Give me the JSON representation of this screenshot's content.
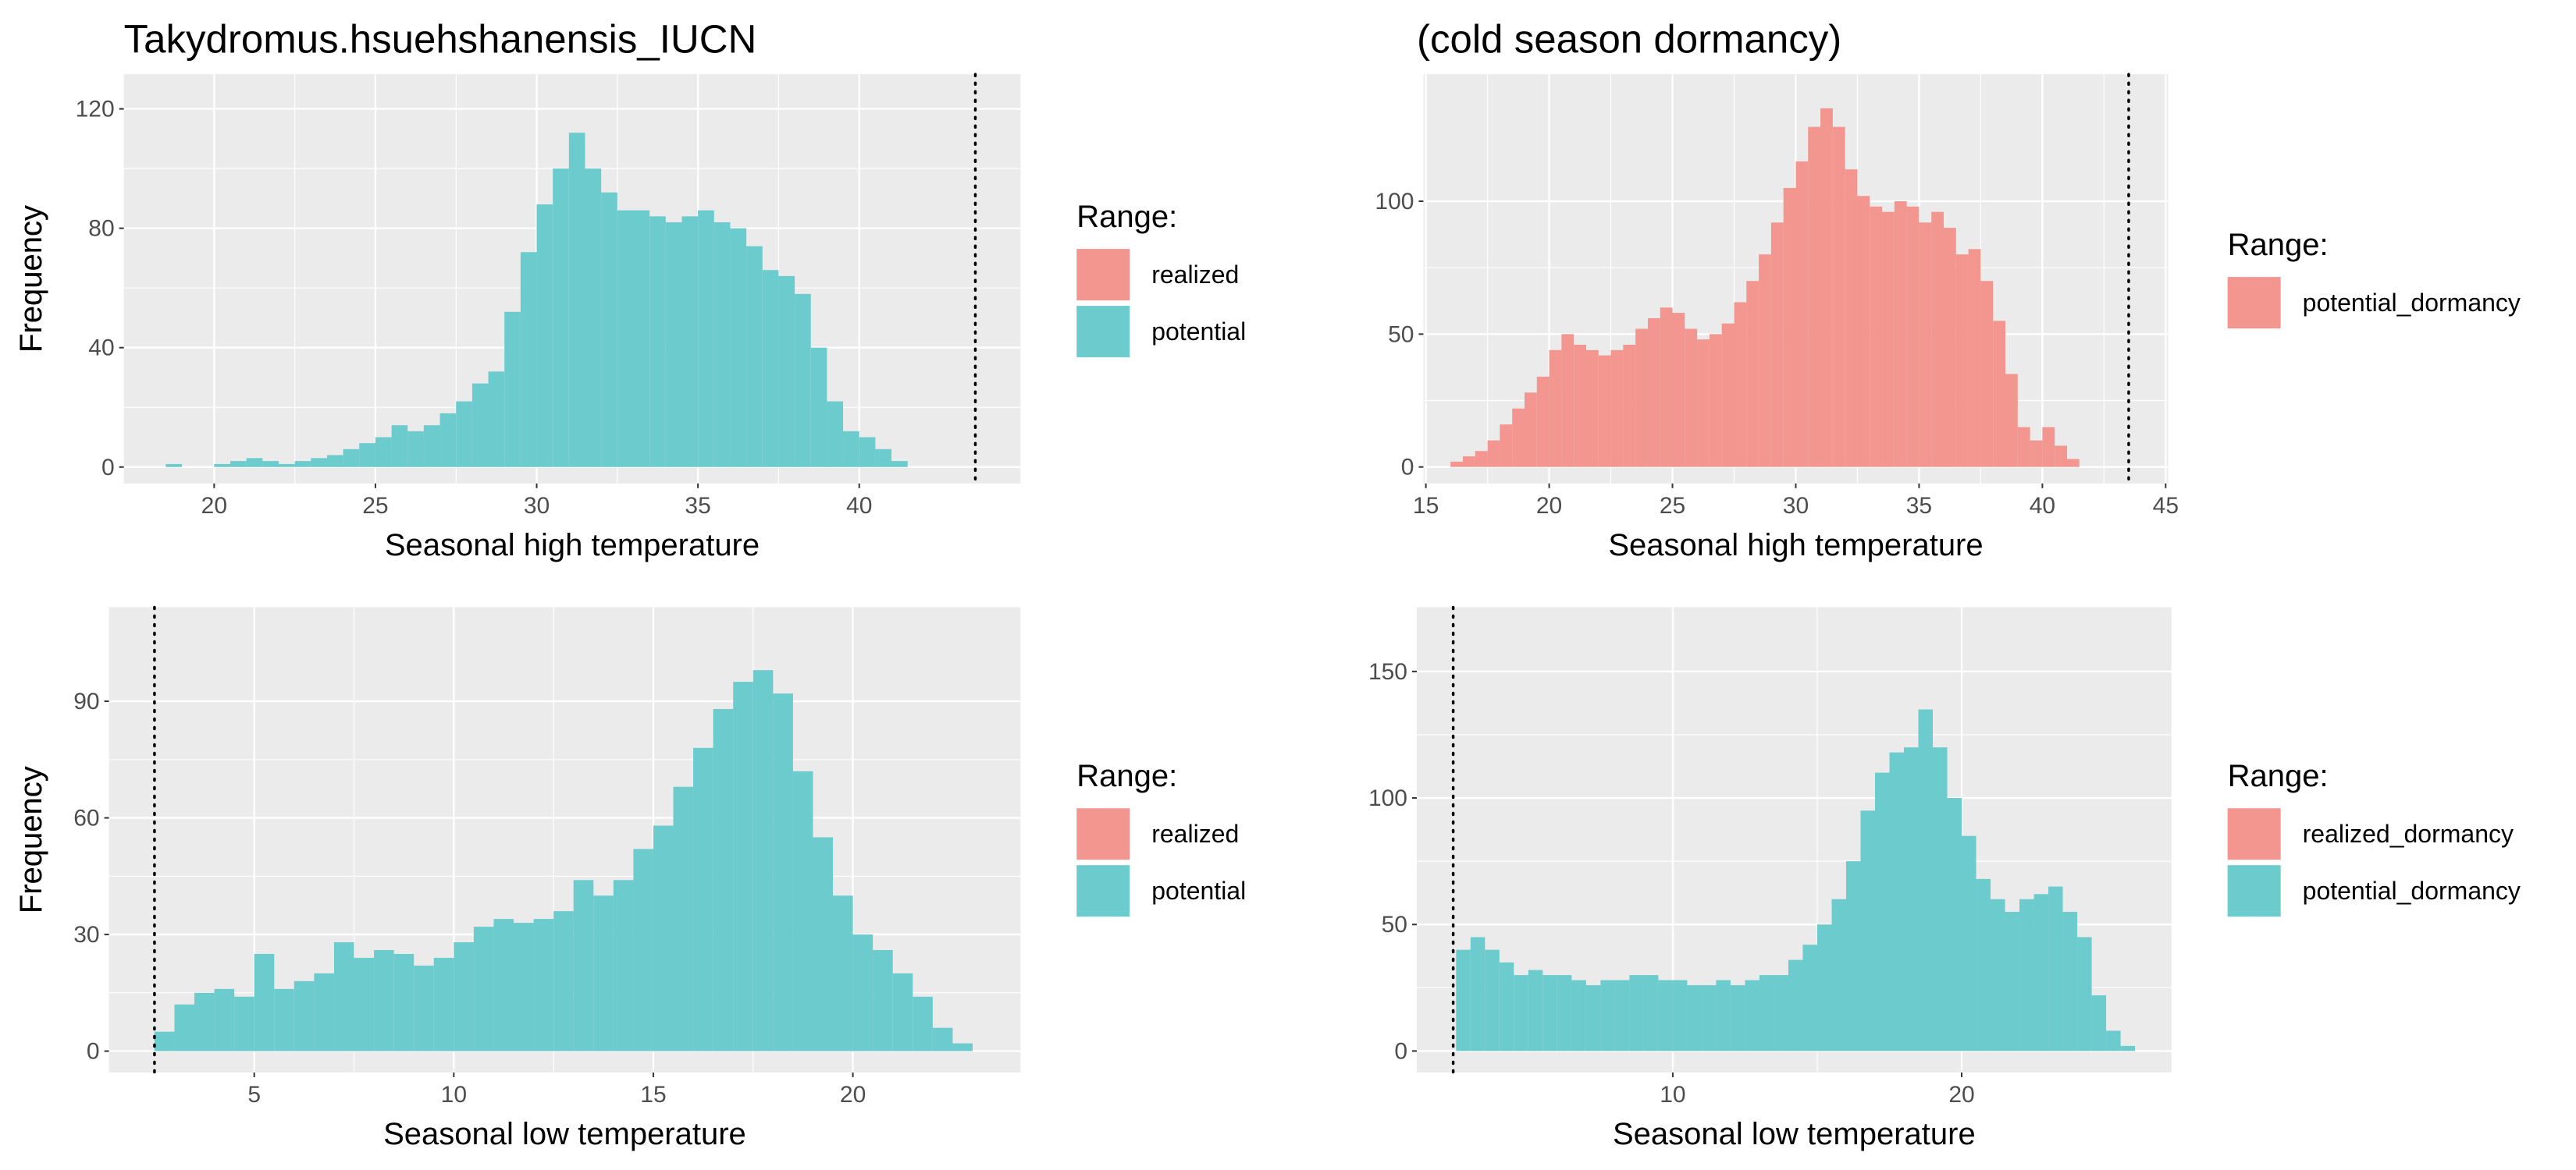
{
  "chart_data": [
    {
      "type": "histogram",
      "title": "Takydromus.hsuehshanensis_IUCN",
      "x_label": "Seasonal high temperature",
      "y_label": "Frequency",
      "bins": [
        18,
        18.5,
        19,
        19.5,
        20,
        20.5,
        21,
        21.5,
        22,
        22.5,
        23,
        23.5,
        24,
        24.5,
        25,
        25.5,
        26,
        26.5,
        27,
        27.5,
        28,
        28.5,
        29,
        29.5,
        30,
        30.5,
        31,
        31.5,
        32,
        32.5,
        33,
        33.5,
        34,
        34.5,
        35,
        35.5,
        36,
        36.5,
        37,
        37.5,
        38,
        38.5,
        39,
        39.5,
        40,
        40.5,
        41,
        41.5
      ],
      "series": [
        {
          "name": "potential",
          "color": "#6ccbcd",
          "values": [
            0,
            1,
            0,
            0,
            1,
            2,
            3,
            2,
            1,
            2,
            3,
            4,
            6,
            8,
            10,
            14,
            12,
            14,
            18,
            22,
            28,
            32,
            52,
            72,
            88,
            100,
            112,
            100,
            92,
            86,
            86,
            84,
            82,
            84,
            86,
            82,
            80,
            74,
            66,
            64,
            58,
            40,
            22,
            12,
            10,
            6,
            2
          ]
        }
      ],
      "xlim": [
        17.2,
        45.0
      ],
      "ylim": [
        -5.5,
        131.6
      ],
      "xticks": [
        20,
        25,
        30,
        35,
        40
      ],
      "yticks": [
        0,
        40,
        80,
        120
      ],
      "grid": true,
      "vline": 43.6,
      "legend": {
        "title": "Range:",
        "items": [
          {
            "name": "realized",
            "color": "#f2968f"
          },
          {
            "name": "potential",
            "color": "#6ccbcd"
          }
        ]
      }
    },
    {
      "type": "histogram",
      "title": "(cold season dormancy)",
      "x_label": "Seasonal high temperature",
      "y_label": "Frequency",
      "bins": [
        16,
        16.5,
        17,
        17.5,
        18,
        18.5,
        19,
        19.5,
        20,
        20.5,
        21,
        21.5,
        22,
        22.5,
        23,
        23.5,
        24,
        24.5,
        25,
        25.5,
        26,
        26.5,
        27,
        27.5,
        28,
        28.5,
        29,
        29.5,
        30,
        30.5,
        31,
        31.5,
        32,
        32.5,
        33,
        33.5,
        34,
        34.5,
        35,
        35.5,
        36,
        36.5,
        37,
        37.5,
        38,
        38.5,
        39,
        39.5,
        40,
        40.5,
        41,
        41.5
      ],
      "series": [
        {
          "name": "potential_dormancy",
          "color": "#f2968f",
          "values": [
            2,
            4,
            6,
            10,
            16,
            22,
            28,
            34,
            44,
            50,
            46,
            44,
            42,
            44,
            46,
            52,
            56,
            60,
            58,
            52,
            48,
            50,
            54,
            62,
            70,
            80,
            92,
            105,
            115,
            128,
            135,
            128,
            112,
            102,
            98,
            96,
            100,
            98,
            92,
            96,
            90,
            80,
            82,
            70,
            55,
            35,
            15,
            10,
            15,
            8,
            3
          ]
        }
      ],
      "xlim": [
        14.9,
        45.1
      ],
      "ylim": [
        -6.2,
        147.8
      ],
      "xticks": [
        15,
        20,
        25,
        30,
        35,
        40,
        45
      ],
      "yticks": [
        0,
        50,
        100
      ],
      "grid": true,
      "vline": 43.5,
      "legend": {
        "title": "Range:",
        "items": [
          {
            "name": "potential_dormancy",
            "color": "#f2968f"
          }
        ]
      }
    },
    {
      "type": "histogram",
      "x_label": "Seasonal low temperature",
      "y_label": "Frequency",
      "bins": [
        2.5,
        3,
        3.5,
        4,
        4.5,
        5,
        5.5,
        6,
        6.5,
        7,
        7.5,
        8,
        8.5,
        9,
        9.5,
        10,
        10.5,
        11,
        11.5,
        12,
        12.5,
        13,
        13.5,
        14,
        14.5,
        15,
        15.5,
        16,
        16.5,
        17,
        17.5,
        18,
        18.5,
        19,
        19.5,
        20,
        20.5,
        21,
        21.5,
        22,
        22.5,
        23
      ],
      "series": [
        {
          "name": "potential",
          "color": "#6ccbcd",
          "values": [
            5,
            12,
            15,
            16,
            14,
            25,
            16,
            18,
            20,
            28,
            24,
            26,
            25,
            22,
            24,
            28,
            32,
            34,
            33,
            34,
            36,
            44,
            40,
            44,
            52,
            58,
            68,
            78,
            88,
            95,
            98,
            92,
            72,
            55,
            40,
            30,
            26,
            20,
            14,
            6,
            2
          ]
        }
      ],
      "xlim": [
        1.36,
        24.2
      ],
      "ylim": [
        -5.5,
        114.2
      ],
      "xticks": [
        5,
        10,
        15,
        20
      ],
      "yticks": [
        0,
        30,
        60,
        90
      ],
      "grid": true,
      "vline": 2.5,
      "legend": {
        "title": "Range:",
        "items": [
          {
            "name": "realized",
            "color": "#f2968f"
          },
          {
            "name": "potential",
            "color": "#6ccbcd"
          }
        ]
      }
    },
    {
      "type": "histogram",
      "x_label": "Seasonal low temperature",
      "y_label": "Frequency",
      "bins": [
        2.5,
        3,
        3.5,
        4,
        4.5,
        5,
        5.5,
        6,
        6.5,
        7,
        7.5,
        8,
        8.5,
        9,
        9.5,
        10,
        10.5,
        11,
        11.5,
        12,
        12.5,
        13,
        13.5,
        14,
        14.5,
        15,
        15.5,
        16,
        16.5,
        17,
        17.5,
        18,
        18.5,
        19,
        19.5,
        20,
        20.5,
        21,
        21.5,
        22,
        22.5,
        23,
        23.5,
        24,
        24.5,
        25,
        25.5,
        26
      ],
      "series": [
        {
          "name": "potential_dormancy",
          "color": "#6ccbcd",
          "values": [
            40,
            45,
            40,
            35,
            30,
            32,
            30,
            30,
            28,
            26,
            28,
            28,
            30,
            30,
            28,
            28,
            26,
            26,
            28,
            26,
            28,
            30,
            30,
            36,
            42,
            50,
            60,
            75,
            95,
            110,
            118,
            120,
            135,
            120,
            100,
            85,
            68,
            60,
            55,
            60,
            62,
            65,
            55,
            45,
            22,
            8,
            2
          ]
        }
      ],
      "xlim": [
        1.14,
        27.26
      ],
      "ylim": [
        -8.5,
        175.4
      ],
      "xticks": [
        10,
        20
      ],
      "yticks": [
        0,
        50,
        100,
        150
      ],
      "grid": true,
      "vline": 2.4,
      "legend": {
        "title": "Range:",
        "items": [
          {
            "name": "realized_dormancy",
            "color": "#f2968f"
          },
          {
            "name": "potential_dormancy",
            "color": "#6ccbcd"
          }
        ]
      }
    }
  ]
}
